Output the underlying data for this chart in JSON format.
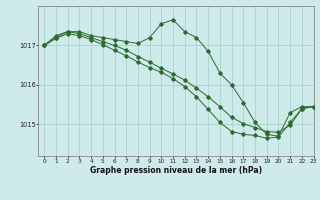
{
  "title": "Graphe pression niveau de la mer (hPa)",
  "bg_color": "#ceeaea",
  "grid_color": "#a8d4cc",
  "line_color": "#2d6a2d",
  "xlim": [
    -0.5,
    23
  ],
  "ylim": [
    1014.2,
    1018.0
  ],
  "yticks": [
    1015,
    1016,
    1017
  ],
  "xticks": [
    0,
    1,
    2,
    3,
    4,
    5,
    6,
    7,
    8,
    9,
    10,
    11,
    12,
    13,
    14,
    15,
    16,
    17,
    18,
    19,
    20,
    21,
    22,
    23
  ],
  "series": [
    [
      1017.0,
      1017.25,
      1017.35,
      1017.35,
      1017.25,
      1017.2,
      1017.15,
      1017.1,
      1017.05,
      1017.2,
      1017.55,
      1017.65,
      1017.35,
      1017.2,
      1016.85,
      1016.3,
      1016.0,
      1015.55,
      1015.05,
      1014.75,
      1014.7,
      1015.3,
      1015.45,
      1015.45
    ],
    [
      1017.0,
      1017.2,
      1017.35,
      1017.3,
      1017.2,
      1017.1,
      1017.0,
      1016.88,
      1016.72,
      1016.58,
      1016.42,
      1016.28,
      1016.12,
      1015.92,
      1015.7,
      1015.45,
      1015.18,
      1015.02,
      1014.92,
      1014.82,
      1014.8,
      1014.98,
      1015.4,
      1015.45
    ],
    [
      1017.0,
      1017.18,
      1017.3,
      1017.25,
      1017.15,
      1017.02,
      1016.88,
      1016.74,
      1016.58,
      1016.44,
      1016.32,
      1016.16,
      1015.96,
      1015.7,
      1015.38,
      1015.05,
      1014.82,
      1014.75,
      1014.72,
      1014.65,
      1014.68,
      1015.05,
      1015.4,
      1015.45
    ]
  ]
}
